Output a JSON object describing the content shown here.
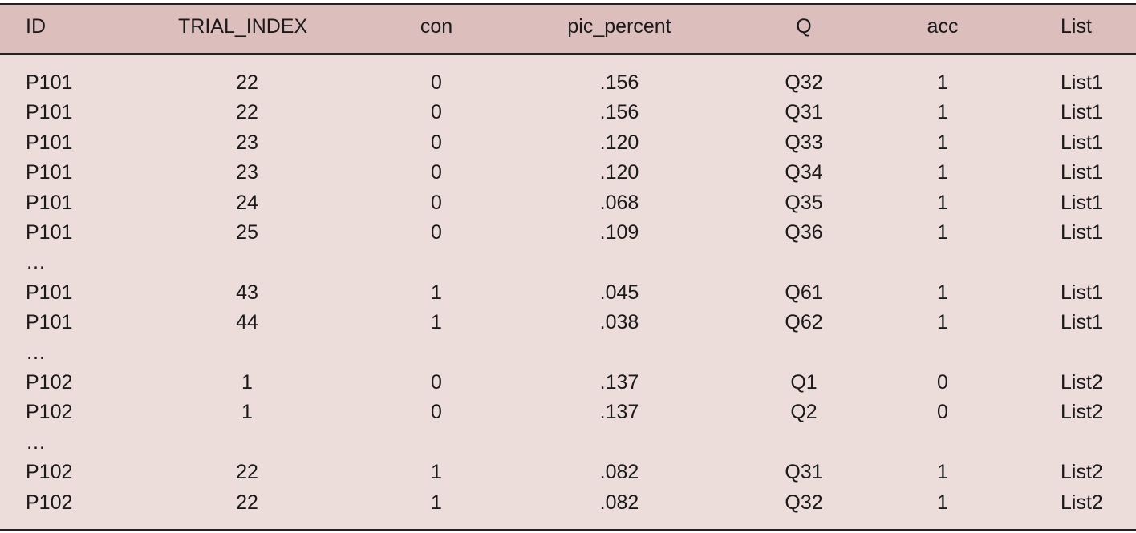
{
  "table": {
    "header": [
      "ID",
      "TRIAL_INDEX",
      "con",
      "pic_percent",
      "Q",
      "acc",
      "List"
    ],
    "rows": [
      [
        "P101",
        "22",
        "0",
        ".156",
        "Q32",
        "1",
        "List1"
      ],
      [
        "P101",
        "22",
        "0",
        ".156",
        "Q31",
        "1",
        "List1"
      ],
      [
        "P101",
        "23",
        "0",
        ".120",
        "Q33",
        "1",
        "List1"
      ],
      [
        "P101",
        "23",
        "0",
        ".120",
        "Q34",
        "1",
        "List1"
      ],
      [
        "P101",
        "24",
        "0",
        ".068",
        "Q35",
        "1",
        "List1"
      ],
      [
        "P101",
        "25",
        "0",
        ".109",
        "Q36",
        "1",
        "List1"
      ],
      [
        "…"
      ],
      [
        "P101",
        "43",
        "1",
        ".045",
        "Q61",
        "1",
        "List1"
      ],
      [
        "P101",
        "44",
        "1",
        ".038",
        "Q62",
        "1",
        "List1"
      ],
      [
        "…"
      ],
      [
        "P102",
        "1",
        "0",
        ".137",
        "Q1",
        "0",
        "List2"
      ],
      [
        "P102",
        "1",
        "0",
        ".137",
        "Q2",
        "0",
        "List2"
      ],
      [
        "…"
      ],
      [
        "P102",
        "22",
        "1",
        ".082",
        "Q31",
        "1",
        "List2"
      ],
      [
        "P102",
        "22",
        "1",
        ".082",
        "Q32",
        "1",
        "List2"
      ]
    ]
  }
}
